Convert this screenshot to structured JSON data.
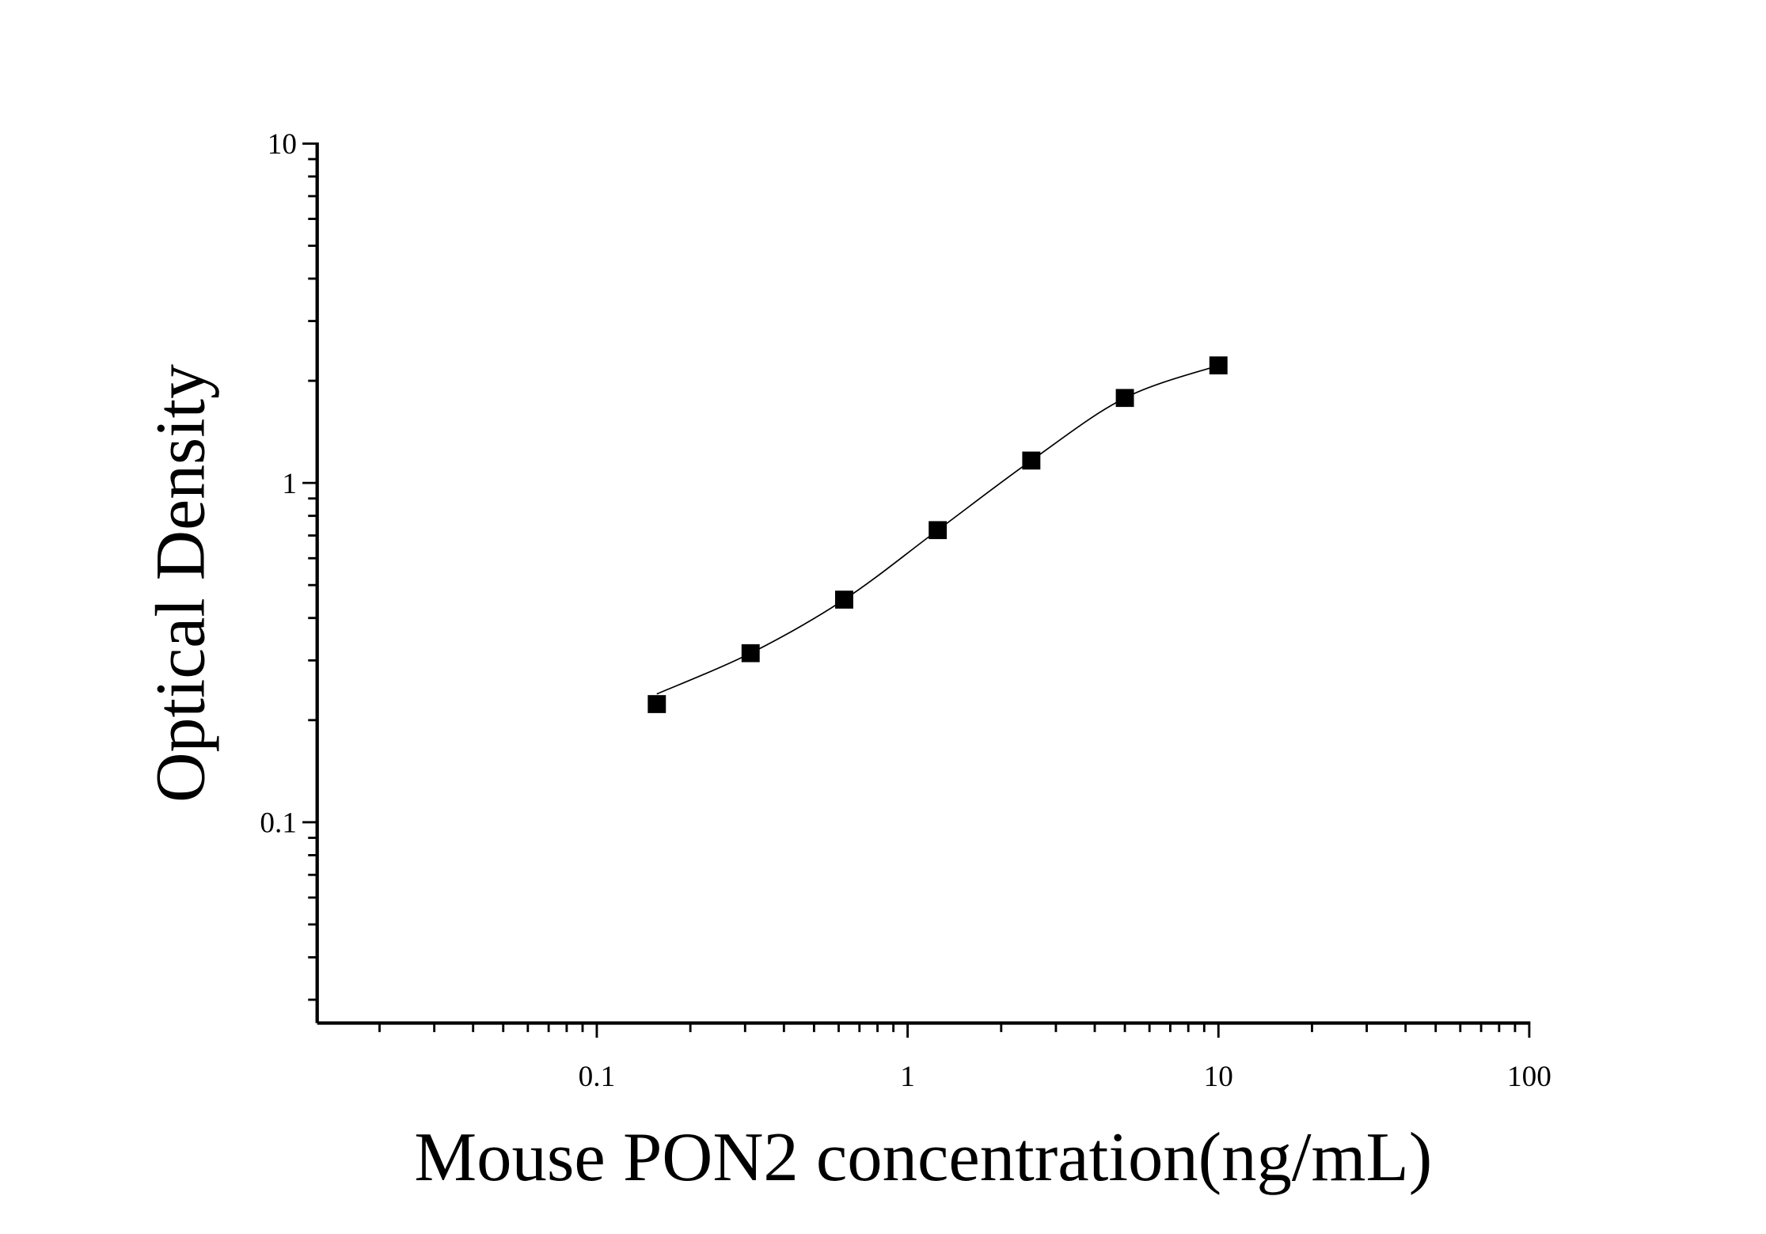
{
  "chart_data": {
    "type": "scatter",
    "title": "",
    "xlabel": "Mouse PON2 concentration(ng/mL)",
    "ylabel": "Optical Density",
    "x_scale": "log",
    "y_scale": "log",
    "xlim": [
      0.0126,
      100
    ],
    "ylim": [
      0.0256,
      10
    ],
    "x_ticks": [
      0.1,
      1,
      10,
      100
    ],
    "x_tick_labels": [
      "0.1",
      "1",
      "10",
      "100"
    ],
    "y_ticks": [
      0.1,
      1,
      10
    ],
    "y_tick_labels": [
      "0.1",
      "1",
      "10"
    ],
    "grid": false,
    "legend": "none",
    "marker": "square",
    "marker_color": "#000000",
    "fit_line": "smooth curve through standards",
    "series": [
      {
        "x": [
          0.156,
          0.3125,
          0.625,
          1.25,
          2.5,
          5,
          10
        ],
        "y": [
          0.223,
          0.315,
          0.453,
          0.726,
          1.164,
          1.78,
          2.22
        ]
      }
    ]
  }
}
